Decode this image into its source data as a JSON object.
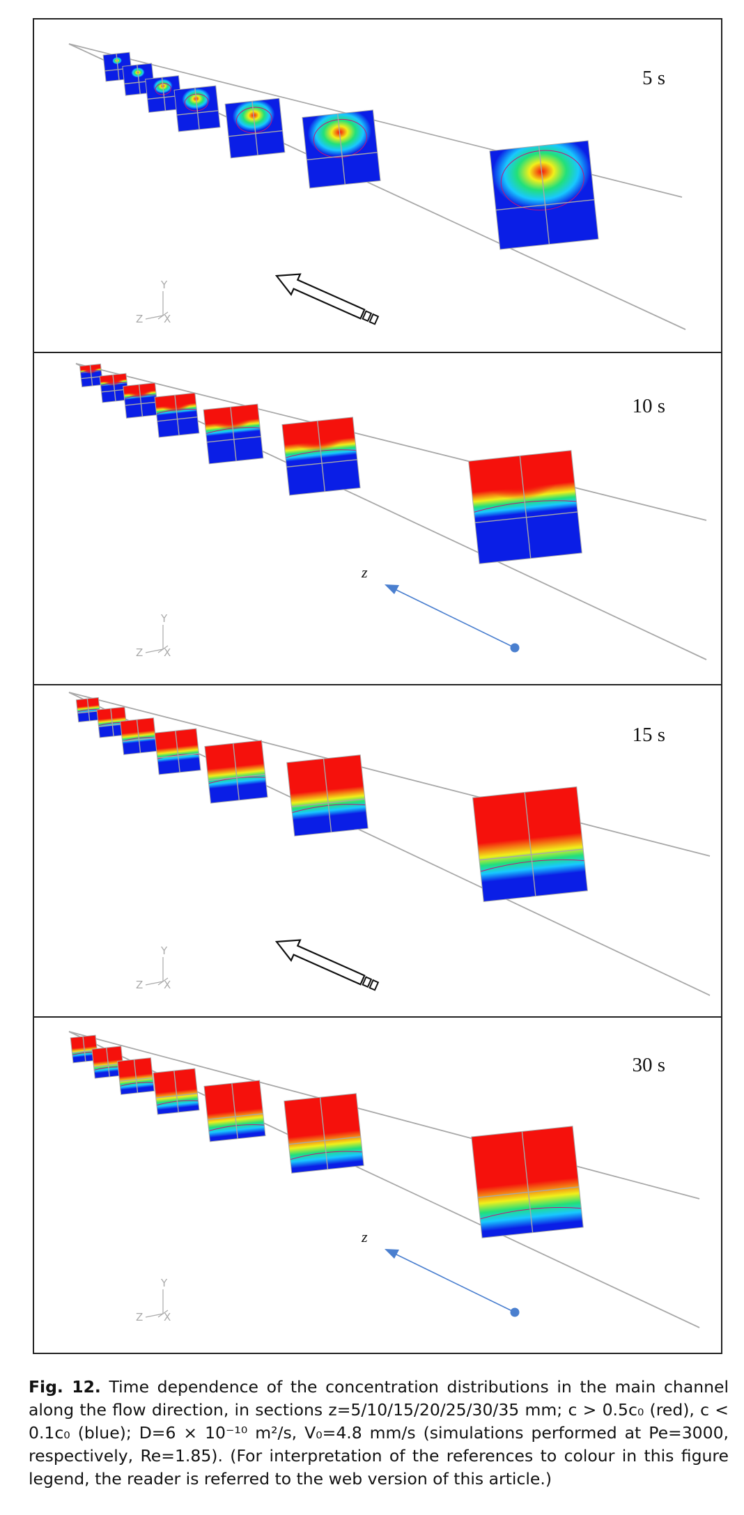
{
  "panels": [
    {
      "time_label": "5 s",
      "direction_indicator": "outline-arrow"
    },
    {
      "time_label": "10 s",
      "direction_indicator": "z-arrow",
      "z_label": "z"
    },
    {
      "time_label": "15 s",
      "direction_indicator": "outline-arrow"
    },
    {
      "time_label": "30 s",
      "direction_indicator": "z-arrow",
      "z_label": "z"
    }
  ],
  "axes_triad": {
    "y": "Y",
    "z": "Z",
    "x": "X"
  },
  "caption": {
    "figure_number": "Fig. 12.",
    "text": "Time dependence of the concentration distributions in the main channel along the flow direction, in sections z=5/10/15/20/25/30/35 mm; c > 0.5c₀ (red), c < 0.1c₀ (blue); D=6 × 10⁻¹⁰ m²/s, V₀=4.8 mm/s (simulations performed at Pe=3000, respectively, Re=1.85). (For interpretation of the references to colour in this figure legend, the reader is referred to the web version of this article.)"
  },
  "colors": {
    "low": "#0a1ee6",
    "mid": "#19c8ff",
    "green": "#22e07a",
    "yellow": "#f2ef1a",
    "high": "#f5110c",
    "contour": "#c0147a",
    "channel_line": "#a8a8a8",
    "z_arrow": "#4a7fcf"
  }
}
